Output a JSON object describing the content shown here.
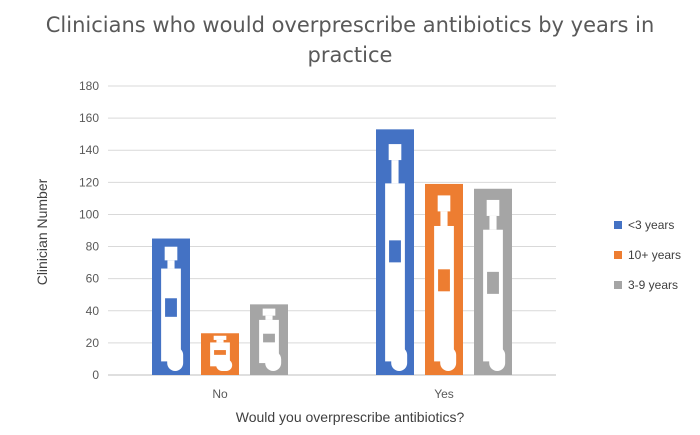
{
  "chart_data": {
    "type": "bar",
    "title": "Clinicians who would overprescribe antibiotics by years in practice",
    "xlabel": "Would you overprescribe antibiotics?",
    "ylabel": "Clinician Number",
    "categories": [
      "No",
      "Yes"
    ],
    "series": [
      {
        "name": "<3 years",
        "color": "#4472C4",
        "values": [
          85,
          153
        ]
      },
      {
        "name": "10+ years",
        "color": "#ED7D31",
        "values": [
          26,
          119
        ]
      },
      {
        "name": "3-9 years",
        "color": "#A5A5A5",
        "values": [
          44,
          116
        ]
      }
    ],
    "ylim": [
      0,
      180
    ],
    "yticks": [
      0,
      20,
      40,
      60,
      80,
      100,
      120,
      140,
      160,
      180
    ],
    "grid": true,
    "legend_position": "right",
    "bar_fill": "pictograph (medicine bottle / pill icons)"
  }
}
